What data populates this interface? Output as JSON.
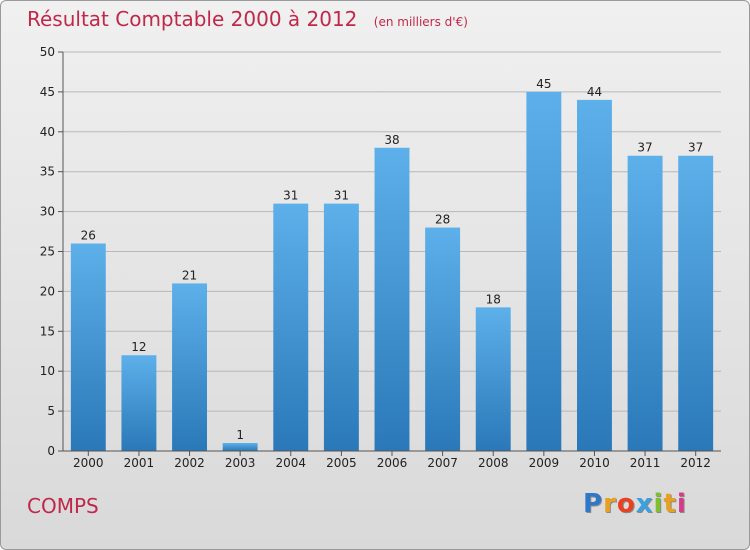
{
  "chart_data": {
    "type": "bar",
    "title": "Résultat Comptable 2000 à 2012",
    "subtitle": "(en milliers d'€)",
    "categories": [
      "2000",
      "2001",
      "2002",
      "2003",
      "2004",
      "2005",
      "2006",
      "2007",
      "2008",
      "2009",
      "2010",
      "2011",
      "2012"
    ],
    "values": [
      26,
      12,
      21,
      1,
      31,
      31,
      38,
      28,
      18,
      45,
      44,
      37,
      37
    ],
    "xlabel": "",
    "ylabel": "",
    "ylim": [
      0,
      50
    ],
    "yticks": [
      0,
      5,
      10,
      15,
      20,
      25,
      30,
      35,
      40,
      45,
      50
    ],
    "grid": true,
    "bar_color_top": "#5db0ea",
    "bar_color_bottom": "#2a78b8"
  },
  "footer": {
    "commune": "COMPS",
    "logo_letters": [
      {
        "ch": "P",
        "color": "#2f78c8"
      },
      {
        "ch": "r",
        "color": "#e8a020"
      },
      {
        "ch": "o",
        "color": "#e84020"
      },
      {
        "ch": "x",
        "color": "#3aa0e0"
      },
      {
        "ch": "i",
        "color": "#80c030"
      },
      {
        "ch": "t",
        "color": "#e8a020"
      },
      {
        "ch": "i",
        "color": "#d83a8a"
      }
    ]
  }
}
